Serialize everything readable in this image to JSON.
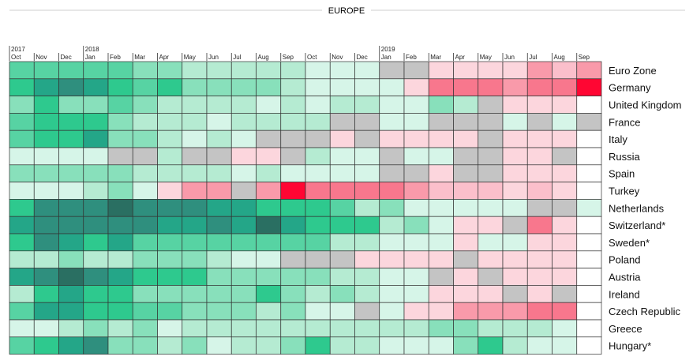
{
  "chart_data": {
    "type": "heatmap",
    "title": "EUROPE",
    "x_year_labels": [
      "2017",
      "2018",
      "2019"
    ],
    "x_year_starts": [
      0,
      3,
      15
    ],
    "x": [
      "Oct",
      "Nov",
      "Dec",
      "Jan",
      "Feb",
      "Mar",
      "Apr",
      "May",
      "Jun",
      "Jul",
      "Aug",
      "Sep",
      "Oct",
      "Nov",
      "Dec",
      "Jan",
      "Feb",
      "Mar",
      "Apr",
      "May",
      "Jun",
      "Jul",
      "Aug",
      "Sep"
    ],
    "y": [
      "Euro Zone",
      "Germany",
      "United Kingdom",
      "France",
      "Italy",
      "Russia",
      "Spain",
      "Turkey",
      "Netherlands",
      "Switzerland*",
      "Sweden*",
      "Poland",
      "Austria",
      "Ireland",
      "Czech Republic",
      "Greece",
      "Hungary*"
    ],
    "palette": {
      "G6": "#2a6f62",
      "G5": "#2f8f7e",
      "G4": "#24a688",
      "G3": "#2ec98e",
      "G2": "#57d3a3",
      "G1": "#88e0bb",
      "G0": "#b5ebd2",
      "L": "#d6f5e8",
      "N": "#c4c4c4",
      "W": "#ffffff",
      "P0": "#fcd6dd",
      "P1": "#fbbfcb",
      "P2": "#f99aaa",
      "P3": "#f8778d",
      "P4": "#ff0633"
    },
    "values": [
      [
        "G2",
        "G2",
        "G2",
        "G2",
        "G2",
        "G1",
        "G1",
        "G0",
        "G0",
        "G0",
        "G0",
        "G0",
        "L",
        "L",
        "L",
        "N",
        "N",
        "P0",
        "P0",
        "P0",
        "P0",
        "P2",
        "P1",
        "P2"
      ],
      [
        "G3",
        "G4",
        "G5",
        "G4",
        "G3",
        "G2",
        "G3",
        "G1",
        "G1",
        "G1",
        "G1",
        "G0",
        "L",
        "L",
        "L",
        "L",
        "P0",
        "P3",
        "P3",
        "P3",
        "P2",
        "P3",
        "P3",
        "P4"
      ],
      [
        "G1",
        "G3",
        "G1",
        "G1",
        "G2",
        "G1",
        "G0",
        "G0",
        "G0",
        "G0",
        "L",
        "G0",
        "L",
        "G0",
        "G0",
        "L",
        "L",
        "G1",
        "G0",
        "N",
        "P0",
        "P0",
        "P0",
        "W"
      ],
      [
        "G2",
        "G3",
        "G3",
        "G3",
        "G1",
        "G0",
        "G0",
        "G0",
        "L",
        "G0",
        "G0",
        "G0",
        "G0",
        "N",
        "N",
        "L",
        "L",
        "N",
        "N",
        "N",
        "L",
        "N",
        "L",
        "N"
      ],
      [
        "G2",
        "G3",
        "G3",
        "G4",
        "G1",
        "G1",
        "G0",
        "L",
        "G0",
        "L",
        "N",
        "N",
        "N",
        "P0",
        "N",
        "P0",
        "P0",
        "P0",
        "P0",
        "N",
        "P0",
        "P0",
        "P0",
        "W"
      ],
      [
        "L",
        "L",
        "L",
        "L",
        "N",
        "N",
        "G0",
        "N",
        "N",
        "P0",
        "P0",
        "N",
        "G0",
        "L",
        "L",
        "N",
        "L",
        "L",
        "N",
        "N",
        "P0",
        "P0",
        "N",
        "W"
      ],
      [
        "G1",
        "G1",
        "G1",
        "G1",
        "G1",
        "G0",
        "G0",
        "G0",
        "G0",
        "L",
        "G0",
        "L",
        "L",
        "L",
        "L",
        "N",
        "N",
        "P0",
        "N",
        "N",
        "P0",
        "P0",
        "P0",
        "W"
      ],
      [
        "L",
        "L",
        "L",
        "G0",
        "G1",
        "L",
        "P0",
        "P2",
        "P2",
        "N",
        "P2",
        "P4",
        "P3",
        "P3",
        "P3",
        "P3",
        "P2",
        "P1",
        "P1",
        "P1",
        "P0",
        "P1",
        "P0",
        "W"
      ],
      [
        "G3",
        "G5",
        "G5",
        "G5",
        "G6",
        "G5",
        "G5",
        "G5",
        "G4",
        "G4",
        "G3",
        "G3",
        "G3",
        "G2",
        "G0",
        "G1",
        "L",
        "L",
        "L",
        "L",
        "L",
        "N",
        "N",
        "L"
      ],
      [
        "G4",
        "G5",
        "G5",
        "G5",
        "G5",
        "G5",
        "G4",
        "G4",
        "G5",
        "G4",
        "G6",
        "G4",
        "G3",
        "G3",
        "G3",
        "G0",
        "G1",
        "L",
        "P0",
        "P0",
        "N",
        "P3",
        "P0",
        "W"
      ],
      [
        "G3",
        "G5",
        "G4",
        "G3",
        "G4",
        "G2",
        "G2",
        "G2",
        "G2",
        "G2",
        "G2",
        "G2",
        "G2",
        "G0",
        "G0",
        "L",
        "L",
        "L",
        "P0",
        "L",
        "L",
        "P0",
        "P0",
        "W"
      ],
      [
        "G0",
        "G0",
        "G1",
        "G0",
        "G0",
        "G1",
        "G1",
        "G1",
        "G0",
        "L",
        "L",
        "N",
        "N",
        "N",
        "P0",
        "P0",
        "P0",
        "P0",
        "N",
        "P0",
        "P0",
        "P0",
        "P0",
        "W"
      ],
      [
        "G4",
        "G5",
        "G6",
        "G5",
        "G4",
        "G3",
        "G3",
        "G3",
        "G1",
        "G1",
        "G1",
        "G1",
        "G1",
        "G0",
        "G0",
        "L",
        "L",
        "N",
        "P0",
        "N",
        "P0",
        "P0",
        "P0",
        "W"
      ],
      [
        "G0",
        "G3",
        "G4",
        "G3",
        "G3",
        "G1",
        "G1",
        "G1",
        "G1",
        "G1",
        "G3",
        "G1",
        "G0",
        "G1",
        "G0",
        "L",
        "L",
        "P0",
        "P0",
        "P0",
        "N",
        "P0",
        "N",
        "W"
      ],
      [
        "G2",
        "G4",
        "G4",
        "G3",
        "G3",
        "G2",
        "G2",
        "G1",
        "G1",
        "G1",
        "G0",
        "G1",
        "L",
        "L",
        "N",
        "L",
        "P0",
        "P0",
        "P2",
        "P2",
        "P2",
        "P3",
        "P3",
        "W"
      ],
      [
        "L",
        "L",
        "G0",
        "G1",
        "G0",
        "G1",
        "L",
        "G0",
        "G0",
        "G0",
        "G0",
        "G0",
        "G0",
        "G0",
        "G0",
        "G0",
        "G0",
        "G1",
        "G1",
        "G0",
        "G0",
        "G0",
        "L",
        "W"
      ],
      [
        "G2",
        "G3",
        "G4",
        "G5",
        "G1",
        "G1",
        "G0",
        "G1",
        "L",
        "G0",
        "G0",
        "G1",
        "G3",
        "G0",
        "G0",
        "L",
        "L",
        "L",
        "G1",
        "G3",
        "G0",
        "L",
        "L",
        "W"
      ]
    ]
  }
}
